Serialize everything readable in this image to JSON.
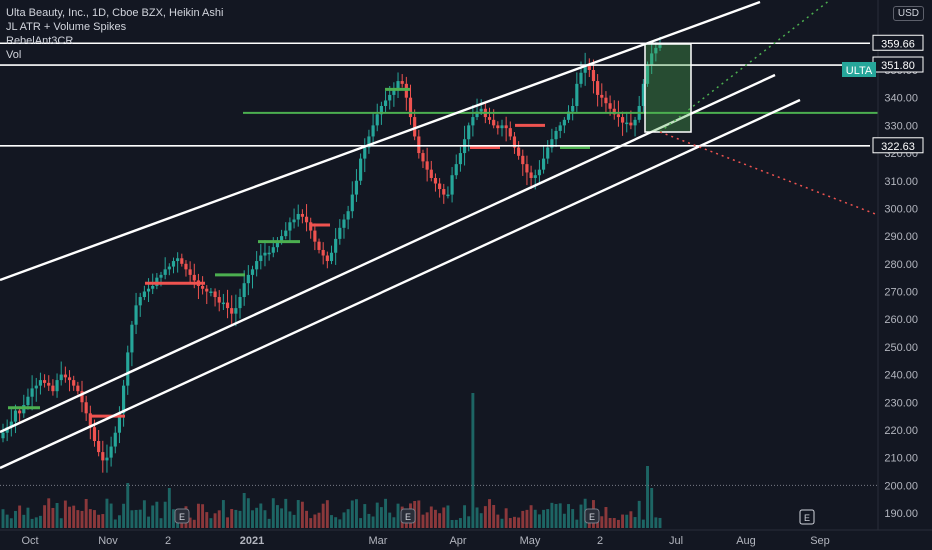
{
  "header": {
    "title": "Ulta Beauty, Inc., 1D, Cboe BZX, Heikin Ashi",
    "indicators": [
      "JL ATR + Volume Spikes",
      "RebelAnt3CR",
      "Vol"
    ],
    "currency": "USD"
  },
  "colors": {
    "background": "#131722",
    "up": "#26a69a",
    "down": "#ef5350",
    "line_white": "#ffffff",
    "line_green": "#4caf50",
    "text": "#d1d4dc",
    "ticker_badge": "#26a69a"
  },
  "chart_data": {
    "type": "candlestick",
    "title": "Ulta Beauty, Inc., 1D, Cboe BZX, Heikin Ashi",
    "y_ticks": [
      190,
      200,
      210,
      220,
      230,
      240,
      250,
      260,
      270,
      280,
      290,
      300,
      310,
      320,
      330,
      340,
      350
    ],
    "ylim": [
      186,
      372
    ],
    "x_ticks": [
      "Oct",
      "Nov",
      "2",
      "2021",
      "Mar",
      "Apr",
      "May",
      "2",
      "Jul",
      "Aug",
      "Sep"
    ],
    "price_labels": [
      {
        "value": 359.66,
        "text": "359.66"
      },
      {
        "value": 351.8,
        "text": "351.80"
      },
      {
        "value": 350.0,
        "text": "ULTA",
        "badge": true
      },
      {
        "value": 322.63,
        "text": "322.63"
      }
    ],
    "horizontal_lines": [
      359.66,
      351.8,
      322.63
    ],
    "green_level": 334.5,
    "closes": [
      219,
      221,
      223,
      227,
      226,
      229,
      232,
      235,
      236,
      238,
      237,
      236,
      234,
      238,
      240,
      239,
      238,
      236,
      234,
      230,
      226,
      221,
      216,
      212,
      209,
      210,
      214,
      219,
      226,
      236,
      248,
      258,
      265,
      268,
      270,
      271,
      272,
      275,
      276,
      278,
      279,
      281,
      282,
      280,
      278,
      276,
      274,
      272,
      271,
      270,
      270,
      268,
      266,
      266,
      264,
      262,
      264,
      268,
      273,
      276,
      278,
      281,
      283,
      284,
      284,
      286,
      288,
      290,
      292,
      295,
      296,
      298,
      297,
      295,
      292,
      288,
      285,
      283,
      281,
      284,
      289,
      293,
      296,
      299,
      305,
      310,
      318,
      322,
      326,
      330,
      334,
      337,
      339,
      341,
      343,
      346,
      345,
      340,
      333,
      326,
      320,
      317,
      314,
      311,
      309,
      307,
      305,
      305,
      312,
      316,
      320,
      325,
      330,
      333,
      335,
      336,
      333,
      332,
      330,
      329,
      330,
      329,
      326,
      322,
      319,
      316,
      313,
      311,
      312,
      314,
      318,
      322,
      325,
      328,
      330,
      332,
      335,
      337,
      345,
      349,
      352,
      350,
      346,
      341,
      340,
      338,
      336,
      334,
      333,
      331,
      331,
      330,
      332,
      337,
      345,
      352,
      356,
      358,
      359
    ]
  }
}
